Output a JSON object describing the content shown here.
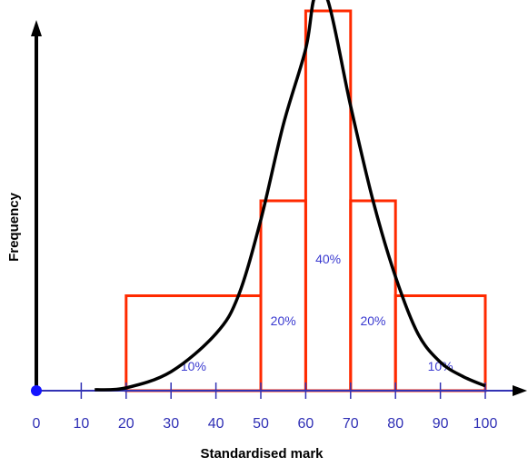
{
  "chart_data": {
    "type": "bar",
    "subtype": "histogram",
    "xlabel": "Standardised mark",
    "ylabel": "Frequency",
    "xlim": [
      0,
      100
    ],
    "x_ticks": [
      "0",
      "10",
      "20",
      "30",
      "40",
      "50",
      "60",
      "70",
      "80",
      "90",
      "100"
    ],
    "bins": [
      {
        "from": 20,
        "to": 50,
        "value": 10,
        "label": "10%"
      },
      {
        "from": 50,
        "to": 60,
        "value": 20,
        "label": "20%"
      },
      {
        "from": 60,
        "to": 70,
        "value": 40,
        "label": "40%"
      },
      {
        "from": 70,
        "to": 80,
        "value": 20,
        "label": "20%"
      },
      {
        "from": 80,
        "to": 100,
        "value": 10,
        "label": "10%"
      }
    ],
    "curve": {
      "description": "smooth bell-shaped curve",
      "points": [
        [
          13,
          0.1
        ],
        [
          20,
          0.3
        ],
        [
          30,
          2
        ],
        [
          40,
          6
        ],
        [
          45,
          10
        ],
        [
          50,
          18
        ],
        [
          55,
          28
        ],
        [
          60,
          36
        ],
        [
          62,
          41.5
        ],
        [
          65,
          41
        ],
        [
          70,
          30
        ],
        [
          75,
          20
        ],
        [
          80,
          12
        ],
        [
          85,
          6
        ],
        [
          90,
          3
        ],
        [
          95,
          1.5
        ],
        [
          100,
          0.5
        ]
      ]
    },
    "grid": false,
    "legend": "none",
    "colors": {
      "bars": "#ff2a00",
      "curve": "#000000",
      "axis_x": "#3232b4",
      "axis_y": "#000000",
      "origin_dot": "#1414ff",
      "tick_labels": "#2f2fb5"
    }
  }
}
